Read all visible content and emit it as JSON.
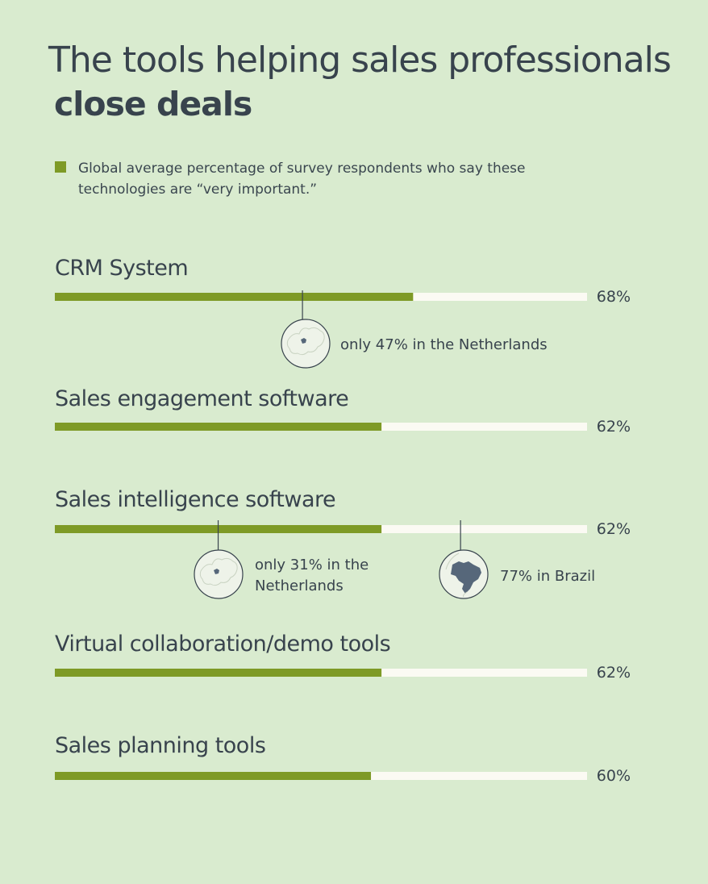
{
  "title": {
    "line1": "The tools helping sales professionals",
    "line2": "close deals"
  },
  "legend": {
    "text": "Global average percentage of survey respondents who say these technologies are “very important.”",
    "color": "#7e9a26"
  },
  "colors": {
    "background": "#d9ebcf",
    "bar": "#7e9a26",
    "track": "#fbfaf3",
    "text": "#38434d",
    "map_land": "#56677a",
    "map_circle": "#eef3e9"
  },
  "chart_data": {
    "type": "bar",
    "orientation": "horizontal",
    "title": "The tools helping sales professionals close deals",
    "xlim": [
      0,
      100
    ],
    "categories": [
      "CRM System",
      "Sales engagement software",
      "Sales intelligence software",
      "Virtual collaboration/demo tools",
      "Sales planning tools"
    ],
    "values": [
      68,
      62,
      62,
      62,
      60
    ],
    "value_labels": [
      "68%",
      "62%",
      "62%",
      "62%",
      "60%"
    ],
    "annotations": [
      {
        "category": "CRM System",
        "value": 47,
        "lines": [
          "only 47% in the Netherlands"
        ],
        "map": "europe-map-icon"
      },
      {
        "category": "Sales intelligence software",
        "value": 31,
        "lines": [
          "only 31% in the",
          "Netherlands"
        ],
        "map": "europe-map-icon"
      },
      {
        "category": "Sales intelligence software",
        "value": 77,
        "lines": [
          "77% in Brazil"
        ],
        "map": "brazil-map-icon"
      }
    ]
  }
}
